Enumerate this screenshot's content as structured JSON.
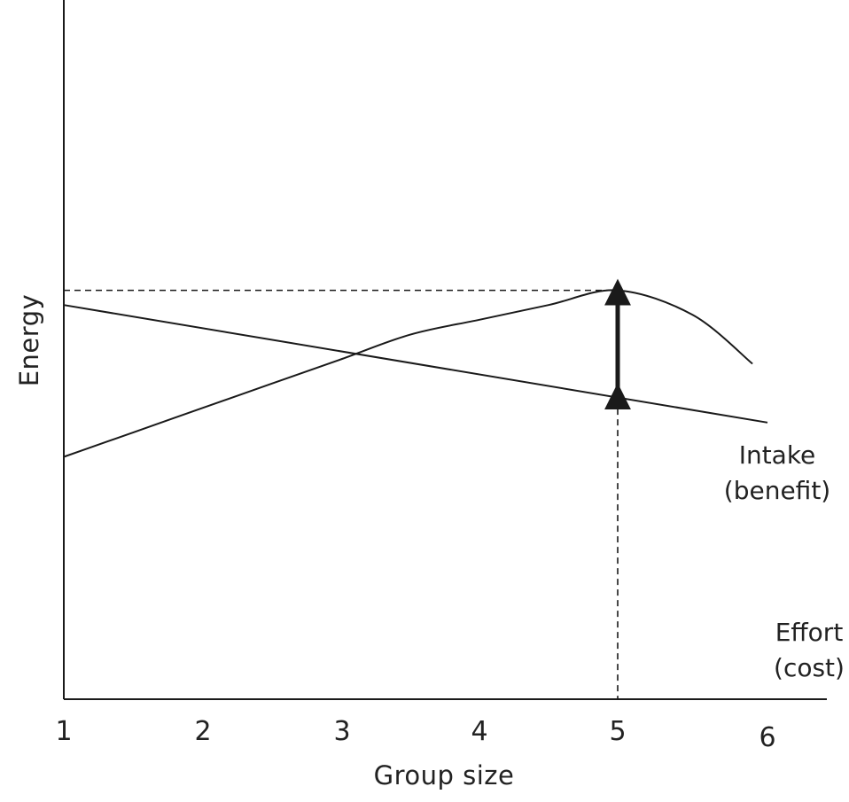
{
  "chart_data": {
    "type": "line",
    "xlabel": "Group size",
    "ylabel": "Energy",
    "xticks": [
      "1",
      "2",
      "3",
      "4",
      "5",
      "6"
    ],
    "xlim": [
      1,
      6
    ],
    "ylim": [
      0,
      10
    ],
    "grid": false,
    "series": [
      {
        "name_lines": [
          "Intake",
          "(benefit)"
        ],
        "x": [
          1,
          1.5,
          2,
          2.5,
          3,
          3.5,
          4,
          4.5,
          5,
          5.5,
          5.9
        ],
        "y": [
          6.1,
          6.6,
          7.1,
          7.6,
          8.1,
          8.6,
          8.9,
          9.2,
          9.5,
          9.0,
          8.0
        ]
      },
      {
        "name_lines": [
          "Effort",
          "(cost)"
        ],
        "x": [
          1,
          6
        ],
        "y": [
          9.2,
          6.8
        ]
      }
    ],
    "reference_lines": {
      "optimum_x": 5,
      "benefit_at_optimum": 9.5,
      "cost_at_optimum": 7.3
    },
    "annotations": [
      {
        "type": "double-arrow",
        "x": 5,
        "y_from": 7.3,
        "y_to": 9.5
      }
    ],
    "line_color": "#1a1a1a"
  }
}
